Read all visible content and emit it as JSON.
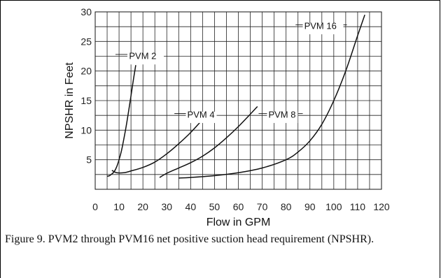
{
  "caption": "Figure 9. PVM2 through PVM16 net positive suction head requirement (NPSHR).",
  "chart_data": {
    "type": "line",
    "xlabel": "Flow in GPM",
    "ylabel": "NPSHR in Feet",
    "xlim": [
      0,
      120
    ],
    "ylim": [
      0,
      30
    ],
    "x_ticks": [
      0,
      10,
      20,
      30,
      40,
      50,
      60,
      70,
      80,
      90,
      100,
      110,
      120
    ],
    "y_ticks": [
      5,
      10,
      15,
      20,
      25,
      30
    ],
    "grid": true,
    "series_color": "#111111",
    "series": [
      {
        "name": "PVM 2",
        "x": [
          5,
          6,
          7,
          8,
          9,
          10,
          11,
          12,
          13,
          14,
          15,
          16,
          17
        ],
        "y": [
          2.2,
          2.3,
          2.6,
          3.0,
          3.8,
          5.0,
          6.5,
          8.5,
          10.7,
          13.2,
          15.8,
          18.5,
          21.0
        ]
      },
      {
        "name": "PVM 4",
        "x": [
          7,
          9,
          12,
          15,
          20,
          25,
          30,
          35,
          40,
          45
        ],
        "y": [
          3.2,
          2.8,
          2.8,
          3.1,
          3.7,
          4.6,
          6.0,
          7.7,
          9.6,
          11.8
        ]
      },
      {
        "name": "PVM 8",
        "x": [
          27,
          30,
          35,
          40,
          45,
          50,
          55,
          60,
          65,
          68
        ],
        "y": [
          2.0,
          2.7,
          3.6,
          4.5,
          5.6,
          7.0,
          8.7,
          10.6,
          12.7,
          14.0
        ]
      },
      {
        "name": "PVM 16",
        "x": [
          35,
          40,
          50,
          60,
          70,
          80,
          85,
          90,
          95,
          100,
          105,
          110,
          113
        ],
        "y": [
          1.9,
          2.0,
          2.3,
          2.8,
          3.6,
          5.0,
          6.3,
          8.2,
          11.0,
          15.0,
          20.0,
          26.0,
          29.5
        ]
      }
    ]
  }
}
